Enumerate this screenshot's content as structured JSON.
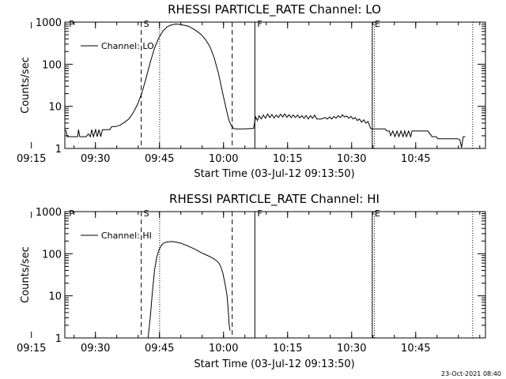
{
  "footer_date": "23-Oct-2021 08:40",
  "chart_data": [
    {
      "type": "line",
      "title": "RHESSI PARTICLE_RATE Channel: LO",
      "xlabel": "Start Time (03-Jul-12 09:13:50)",
      "ylabel": "Counts/sec",
      "y_scale": "log",
      "ylim": [
        1,
        1000
      ],
      "xlim_minutes": [
        9.0,
        107.5
      ],
      "x_ticks": [
        "09:15",
        "09:30",
        "09:45",
        "10:00",
        "10:15",
        "10:30",
        "10:45"
      ],
      "y_ticks": [
        "1",
        "10",
        "100",
        "1000"
      ],
      "legend": "Channel: LO",
      "markers": [
        {
          "label": "P",
          "t": 9.4,
          "style": "none"
        },
        {
          "label": "S",
          "t": 26.9,
          "style": "dashed"
        },
        {
          "label": "",
          "t": 31.2,
          "style": "dotted"
        },
        {
          "label": "",
          "t": 48.2,
          "style": "dashed"
        },
        {
          "label": "F",
          "t": 53.5,
          "style": "solid"
        },
        {
          "label": "E",
          "t": 81.0,
          "style": "solid"
        },
        {
          "label": "",
          "t": 81.5,
          "style": "dotted"
        },
        {
          "label": "",
          "t": 104.5,
          "style": "dotted"
        }
      ],
      "series": [
        {
          "values": [
            [
              9.2,
              2.8
            ],
            [
              9.6,
              1.9
            ],
            [
              12.0,
              1.9
            ],
            [
              12.2,
              2.8
            ],
            [
              12.5,
              1.9
            ],
            [
              14.0,
              1.9
            ],
            [
              14.5,
              2.2
            ],
            [
              15.0,
              1.9
            ],
            [
              15.3,
              2.8
            ],
            [
              15.7,
              1.9
            ],
            [
              16.2,
              2.8
            ],
            [
              16.6,
              1.9
            ],
            [
              17.0,
              2.8
            ],
            [
              17.4,
              1.9
            ],
            [
              17.8,
              2.8
            ],
            [
              18.2,
              2.8
            ],
            [
              19.5,
              2.8
            ],
            [
              20.0,
              3.3
            ],
            [
              21.0,
              3.3
            ],
            [
              22.0,
              3.6
            ],
            [
              23.0,
              4.2
            ],
            [
              24.0,
              5.0
            ],
            [
              25.0,
              7.0
            ],
            [
              26.0,
              11
            ],
            [
              27.0,
              20
            ],
            [
              28.0,
              45
            ],
            [
              29.0,
              110
            ],
            [
              30.0,
              240
            ],
            [
              31.0,
              420
            ],
            [
              32.0,
              620
            ],
            [
              33.0,
              780
            ],
            [
              34.0,
              860
            ],
            [
              35.0,
              900
            ],
            [
              36.0,
              880
            ],
            [
              37.0,
              840
            ],
            [
              38.0,
              800
            ],
            [
              39.0,
              700
            ],
            [
              40.0,
              600
            ],
            [
              41.0,
              500
            ],
            [
              42.0,
              380
            ],
            [
              43.0,
              260
            ],
            [
              44.0,
              140
            ],
            [
              45.0,
              60
            ],
            [
              46.0,
              20
            ],
            [
              47.0,
              7
            ],
            [
              47.5,
              4.5
            ],
            [
              48.0,
              3.5
            ],
            [
              48.5,
              3.0
            ],
            [
              49.0,
              2.9
            ],
            [
              51.0,
              2.9
            ],
            [
              53.2,
              3.0
            ],
            [
              53.7,
              5.6
            ],
            [
              54.1,
              4.6
            ],
            [
              54.5,
              6.0
            ],
            [
              55.0,
              5.0
            ],
            [
              55.5,
              6.2
            ],
            [
              56.0,
              5.2
            ],
            [
              56.5,
              6.6
            ],
            [
              57.0,
              5.4
            ],
            [
              57.5,
              6.4
            ],
            [
              58.0,
              5.3
            ],
            [
              58.5,
              6.2
            ],
            [
              59.0,
              5.4
            ],
            [
              59.5,
              6.5
            ],
            [
              60.0,
              5.6
            ],
            [
              60.5,
              6.6
            ],
            [
              61.0,
              5.5
            ],
            [
              61.5,
              6.3
            ],
            [
              62.0,
              5.4
            ],
            [
              62.5,
              6.2
            ],
            [
              63.0,
              5.4
            ],
            [
              63.5,
              6.2
            ],
            [
              64.0,
              5.3
            ],
            [
              64.5,
              6.0
            ],
            [
              65.0,
              5.2
            ],
            [
              65.5,
              6.1
            ],
            [
              66.0,
              5.0
            ],
            [
              66.5,
              6.0
            ],
            [
              67.0,
              5.2
            ],
            [
              67.5,
              6.2
            ],
            [
              68.0,
              5.0
            ],
            [
              69.0,
              5.0
            ],
            [
              70.0,
              5.4
            ],
            [
              70.5,
              5.0
            ],
            [
              71.0,
              5.6
            ],
            [
              71.5,
              5.0
            ],
            [
              72.0,
              5.8
            ],
            [
              72.5,
              5.2
            ],
            [
              73.0,
              6.0
            ],
            [
              73.5,
              5.4
            ],
            [
              74.0,
              6.3
            ],
            [
              74.5,
              5.6
            ],
            [
              75.0,
              5.9
            ],
            [
              75.5,
              5.2
            ],
            [
              76.0,
              5.8
            ],
            [
              76.5,
              5.0
            ],
            [
              77.0,
              5.4
            ],
            [
              77.5,
              4.6
            ],
            [
              78.0,
              5.0
            ],
            [
              78.5,
              4.2
            ],
            [
              79.0,
              4.8
            ],
            [
              79.5,
              4.0
            ],
            [
              80.0,
              4.4
            ],
            [
              80.6,
              3.0
            ],
            [
              81.0,
              2.9
            ],
            [
              84.0,
              2.9
            ],
            [
              84.4,
              2.6
            ],
            [
              85.0,
              2.6
            ],
            [
              85.3,
              2.0
            ],
            [
              85.8,
              2.6
            ],
            [
              86.3,
              1.9
            ],
            [
              86.8,
              2.6
            ],
            [
              87.2,
              1.9
            ],
            [
              87.7,
              2.6
            ],
            [
              88.2,
              1.9
            ],
            [
              88.6,
              2.6
            ],
            [
              89.0,
              1.9
            ],
            [
              89.5,
              2.6
            ],
            [
              90.0,
              1.9
            ],
            [
              90.3,
              2.6
            ],
            [
              91.0,
              2.6
            ],
            [
              94.0,
              2.6
            ],
            [
              95.0,
              1.9
            ],
            [
              96.0,
              1.9
            ],
            [
              96.3,
              1.7
            ],
            [
              101.0,
              1.7
            ],
            [
              101.5,
              1.6
            ],
            [
              101.9,
              1.05
            ],
            [
              102.3,
              1.9
            ],
            [
              102.8,
              1.9
            ]
          ]
        }
      ]
    },
    {
      "type": "line",
      "title": "RHESSI PARTICLE_RATE Channel: HI",
      "xlabel": "Start Time (03-Jul-12 09:13:50)",
      "ylabel": "Counts/sec",
      "y_scale": "log",
      "ylim": [
        1,
        1000
      ],
      "xlim_minutes": [
        9.0,
        107.5
      ],
      "x_ticks": [
        "09:15",
        "09:30",
        "09:45",
        "10:00",
        "10:15",
        "10:30",
        "10:45"
      ],
      "y_ticks": [
        "1",
        "10",
        "100",
        "1000"
      ],
      "legend": "Channel: HI",
      "markers": [
        {
          "label": "P",
          "t": 9.4,
          "style": "none"
        },
        {
          "label": "S",
          "t": 26.9,
          "style": "dashed"
        },
        {
          "label": "",
          "t": 31.2,
          "style": "dotted"
        },
        {
          "label": "",
          "t": 48.2,
          "style": "dashed"
        },
        {
          "label": "F",
          "t": 53.5,
          "style": "solid"
        },
        {
          "label": "E",
          "t": 81.0,
          "style": "solid"
        },
        {
          "label": "",
          "t": 81.5,
          "style": "dotted"
        },
        {
          "label": "",
          "t": 104.5,
          "style": "dotted"
        }
      ],
      "series": [
        {
          "values": [
            [
              28.5,
              1.0
            ],
            [
              29.0,
              3.0
            ],
            [
              29.5,
              12
            ],
            [
              30.0,
              40
            ],
            [
              30.5,
              80
            ],
            [
              31.0,
              120
            ],
            [
              31.5,
              150
            ],
            [
              32.0,
              175
            ],
            [
              32.5,
              185
            ],
            [
              33.0,
              190
            ],
            [
              34.0,
              195
            ],
            [
              35.0,
              190
            ],
            [
              36.0,
              180
            ],
            [
              37.0,
              165
            ],
            [
              38.0,
              150
            ],
            [
              39.0,
              135
            ],
            [
              40.0,
              120
            ],
            [
              41.0,
              105
            ],
            [
              42.0,
              95
            ],
            [
              43.0,
              85
            ],
            [
              44.0,
              75
            ],
            [
              45.0,
              62
            ],
            [
              45.5,
              50
            ],
            [
              46.0,
              35
            ],
            [
              46.5,
              20
            ],
            [
              47.0,
              10
            ],
            [
              47.3,
              4
            ],
            [
              47.5,
              2.0
            ],
            [
              47.7,
              1.5
            ]
          ]
        }
      ]
    }
  ]
}
